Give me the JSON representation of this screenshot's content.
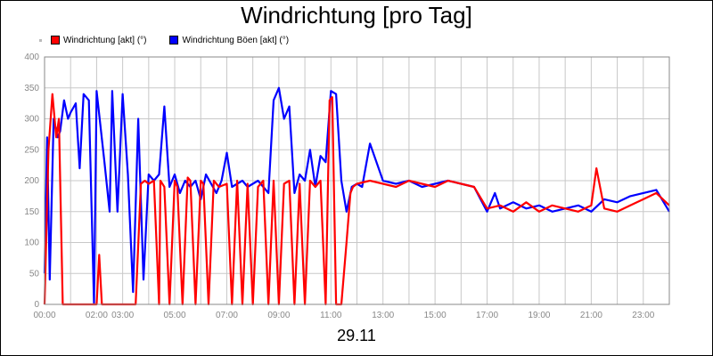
{
  "chart_data": {
    "type": "line",
    "title": "Windrichtung [pro Tag]",
    "xlabel": "29.11",
    "ylabel": "",
    "ylim": [
      0,
      400
    ],
    "yticks": [
      0,
      50,
      100,
      150,
      200,
      250,
      300,
      350,
      400
    ],
    "xlim": [
      0,
      24
    ],
    "xtick_labels": [
      "00:00",
      "02:00",
      "03:00",
      "05:00",
      "07:00",
      "09:00",
      "11:00",
      "13:00",
      "15:00",
      "17:00",
      "19:00",
      "21:00",
      "23:00"
    ],
    "xtick_hours": [
      0,
      2,
      3,
      5,
      7,
      9,
      11,
      13,
      15,
      17,
      19,
      21,
      23
    ],
    "grid": true,
    "legend_position": "top-left",
    "series": [
      {
        "name": "Windrichtung [akt] (°)",
        "color": "#ff0000",
        "x": [
          0.0,
          0.15,
          0.3,
          0.45,
          0.55,
          0.7,
          0.85,
          1.0,
          1.1,
          1.6,
          2.0,
          2.1,
          2.2,
          2.5,
          3.5,
          3.7,
          3.85,
          4.0,
          4.2,
          4.4,
          4.45,
          4.6,
          4.8,
          5.0,
          5.1,
          5.3,
          5.5,
          5.6,
          5.8,
          6.0,
          6.1,
          6.3,
          6.5,
          6.7,
          7.0,
          7.2,
          7.4,
          7.6,
          7.8,
          8.0,
          8.2,
          8.4,
          8.6,
          8.8,
          9.0,
          9.2,
          9.4,
          9.6,
          9.8,
          10.0,
          10.2,
          10.4,
          10.6,
          10.8,
          10.95,
          11.05,
          11.2,
          11.4,
          11.6,
          11.75,
          11.85,
          12.0,
          12.5,
          13.0,
          13.5,
          14.0,
          14.5,
          15.0,
          15.5,
          16.0,
          16.5,
          17.0,
          17.5,
          18.0,
          18.5,
          19.0,
          19.5,
          20.0,
          20.5,
          21.0,
          21.2,
          21.5,
          22.0,
          22.5,
          23.0,
          23.5,
          24.0
        ],
        "y": [
          0,
          250,
          340,
          270,
          300,
          0,
          0,
          0,
          0,
          0,
          0,
          80,
          0,
          0,
          0,
          195,
          200,
          195,
          200,
          0,
          200,
          190,
          0,
          200,
          190,
          0,
          205,
          200,
          0,
          200,
          195,
          0,
          200,
          190,
          195,
          0,
          200,
          0,
          195,
          0,
          190,
          200,
          0,
          200,
          0,
          195,
          200,
          0,
          195,
          0,
          200,
          190,
          200,
          0,
          330,
          335,
          0,
          0,
          100,
          180,
          190,
          195,
          200,
          195,
          190,
          200,
          195,
          190,
          200,
          195,
          190,
          155,
          160,
          150,
          165,
          150,
          160,
          155,
          150,
          160,
          220,
          155,
          150,
          160,
          170,
          180,
          160
        ]
      },
      {
        "name": "Windrichtung Böen [akt] (°)",
        "color": "#0000ff",
        "x": [
          0.0,
          0.1,
          0.2,
          0.35,
          0.5,
          0.6,
          0.75,
          0.9,
          1.0,
          1.2,
          1.35,
          1.5,
          1.7,
          1.9,
          2.0,
          2.3,
          2.5,
          2.6,
          2.8,
          3.0,
          3.2,
          3.4,
          3.6,
          3.8,
          4.0,
          4.2,
          4.4,
          4.6,
          4.8,
          5.0,
          5.2,
          5.4,
          5.6,
          5.8,
          6.0,
          6.2,
          6.4,
          6.6,
          6.8,
          7.0,
          7.2,
          7.4,
          7.6,
          7.8,
          8.0,
          8.2,
          8.4,
          8.6,
          8.8,
          9.0,
          9.2,
          9.4,
          9.6,
          9.8,
          10.0,
          10.2,
          10.4,
          10.6,
          10.8,
          11.0,
          11.2,
          11.4,
          11.6,
          11.8,
          12.0,
          12.2,
          12.5,
          13.0,
          13.5,
          14.0,
          14.5,
          15.0,
          15.5,
          16.0,
          16.5,
          17.0,
          17.3,
          17.5,
          18.0,
          18.5,
          19.0,
          19.5,
          20.0,
          20.5,
          21.0,
          21.5,
          22.0,
          22.5,
          23.0,
          23.5,
          24.0
        ],
        "y": [
          50,
          270,
          40,
          300,
          270,
          280,
          330,
          300,
          310,
          325,
          220,
          340,
          330,
          0,
          345,
          230,
          150,
          345,
          150,
          340,
          210,
          20,
          300,
          40,
          210,
          200,
          210,
          320,
          190,
          210,
          180,
          200,
          190,
          200,
          170,
          210,
          195,
          180,
          200,
          245,
          190,
          195,
          200,
          190,
          195,
          200,
          190,
          180,
          330,
          350,
          300,
          320,
          180,
          210,
          200,
          250,
          190,
          240,
          230,
          345,
          340,
          200,
          150,
          190,
          195,
          190,
          260,
          200,
          195,
          200,
          190,
          195,
          200,
          195,
          190,
          150,
          180,
          155,
          165,
          155,
          160,
          150,
          155,
          160,
          150,
          170,
          165,
          175,
          180,
          185,
          150
        ]
      }
    ]
  }
}
